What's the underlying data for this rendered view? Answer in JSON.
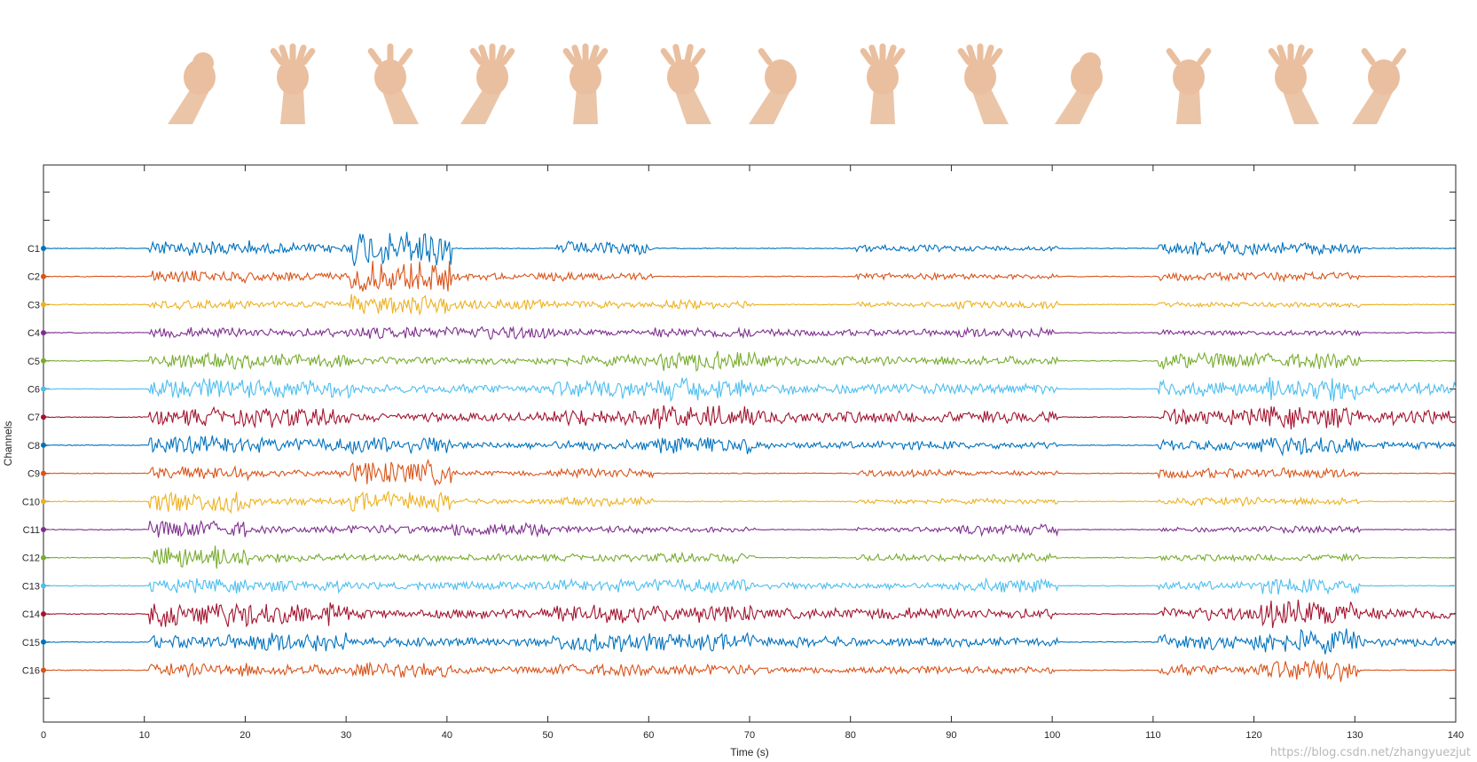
{
  "chart_data": {
    "type": "line",
    "xlabel": "Time (s)",
    "ylabel": "Channels",
    "xlim": [
      0,
      140
    ],
    "x_ticks": [
      "0",
      "10",
      "20",
      "30",
      "40",
      "50",
      "60",
      "70",
      "80",
      "90",
      "100",
      "110",
      "120",
      "130",
      "140"
    ],
    "x_tick_values": [
      0,
      10,
      20,
      30,
      40,
      50,
      60,
      70,
      80,
      90,
      100,
      110,
      120,
      130,
      140
    ],
    "grid": false,
    "legend": "none",
    "gesture_segments_s": [
      {
        "gesture": "fist",
        "start": 10.5,
        "end": 20.5
      },
      {
        "gesture": "open-palm-up",
        "start": 20.5,
        "end": 30.5
      },
      {
        "gesture": "wrist-flexion",
        "start": 30.5,
        "end": 40.5
      },
      {
        "gesture": "fingers-spread-up",
        "start": 50.5,
        "end": 60.5
      },
      {
        "gesture": "hand-spread-out",
        "start": 60.5,
        "end": 70.5
      },
      {
        "gesture": "palm-up-flat",
        "start": 70.5,
        "end": 80.5
      },
      {
        "gesture": "fist-upright",
        "start": 80.5,
        "end": 90.5
      },
      {
        "gesture": "open-palm-front",
        "start": 90.5,
        "end": 100.5
      },
      {
        "gesture": "claw",
        "start": 110.5,
        "end": 120.5
      },
      {
        "gesture": "wrist-extension",
        "start": 120.5,
        "end": 130.5
      },
      {
        "gesture": "pinch",
        "start": 130.5,
        "end": 140
      }
    ],
    "series": [
      {
        "name": "C1",
        "color": "#0072BD",
        "burst_s": [
          [
            10.5,
            20.5,
            0.9
          ],
          [
            20.5,
            30.5,
            0.6
          ],
          [
            30.5,
            40.5,
            2.2
          ],
          [
            50.5,
            60.5,
            0.8
          ],
          [
            80.5,
            90.5,
            0.4
          ],
          [
            90.5,
            100.5,
            0.3
          ],
          [
            110.5,
            120.5,
            0.8
          ],
          [
            120.5,
            130.5,
            0.7
          ]
        ]
      },
      {
        "name": "C2",
        "color": "#D95319",
        "burst_s": [
          [
            10.5,
            20.5,
            0.7
          ],
          [
            20.5,
            30.5,
            0.5
          ],
          [
            30.5,
            40.5,
            1.8
          ],
          [
            40.5,
            50.5,
            0.4
          ],
          [
            50.5,
            60.5,
            0.5
          ],
          [
            80.5,
            90.5,
            0.4
          ],
          [
            90.5,
            100.5,
            0.3
          ],
          [
            110.5,
            120.5,
            0.5
          ],
          [
            120.5,
            130.5,
            0.5
          ]
        ]
      },
      {
        "name": "C3",
        "color": "#EDB120",
        "burst_s": [
          [
            10.5,
            20.5,
            0.5
          ],
          [
            20.5,
            30.5,
            0.4
          ],
          [
            30.5,
            40.5,
            1.2
          ],
          [
            40.5,
            50.5,
            0.6
          ],
          [
            50.5,
            60.5,
            0.4
          ],
          [
            60.5,
            70.5,
            0.5
          ],
          [
            80.5,
            90.5,
            0.3
          ],
          [
            90.5,
            100.5,
            0.5
          ],
          [
            110.5,
            120.5,
            0.3
          ],
          [
            120.5,
            130.5,
            0.3
          ]
        ]
      },
      {
        "name": "C4",
        "color": "#7E2F8E",
        "burst_s": [
          [
            10.5,
            20.5,
            0.6
          ],
          [
            20.5,
            30.5,
            0.5
          ],
          [
            30.5,
            40.5,
            0.7
          ],
          [
            40.5,
            50.5,
            0.8
          ],
          [
            50.5,
            60.5,
            0.4
          ],
          [
            60.5,
            70.5,
            0.6
          ],
          [
            70.5,
            80.5,
            0.4
          ],
          [
            80.5,
            90.5,
            0.4
          ],
          [
            90.5,
            100.5,
            0.6
          ],
          [
            110.5,
            120.5,
            0.3
          ],
          [
            120.5,
            130.5,
            0.3
          ]
        ]
      },
      {
        "name": "C5",
        "color": "#77AC30",
        "burst_s": [
          [
            10.5,
            20.5,
            0.9
          ],
          [
            20.5,
            30.5,
            0.8
          ],
          [
            30.5,
            40.5,
            0.4
          ],
          [
            40.5,
            50.5,
            0.4
          ],
          [
            50.5,
            60.5,
            0.6
          ],
          [
            60.5,
            70.5,
            1.2
          ],
          [
            70.5,
            80.5,
            0.6
          ],
          [
            80.5,
            90.5,
            0.5
          ],
          [
            90.5,
            100.5,
            0.5
          ],
          [
            110.5,
            120.5,
            0.9
          ],
          [
            120.5,
            130.5,
            0.9
          ]
        ]
      },
      {
        "name": "C6",
        "color": "#4DBEEE",
        "burst_s": [
          [
            10.5,
            20.5,
            1.3
          ],
          [
            20.5,
            30.5,
            1.0
          ],
          [
            30.5,
            40.5,
            0.5
          ],
          [
            40.5,
            50.5,
            0.5
          ],
          [
            50.5,
            60.5,
            1.0
          ],
          [
            60.5,
            70.5,
            1.3
          ],
          [
            70.5,
            80.5,
            0.6
          ],
          [
            80.5,
            90.5,
            0.6
          ],
          [
            90.5,
            100.5,
            0.6
          ],
          [
            110.5,
            120.5,
            0.9
          ],
          [
            120.5,
            130.5,
            1.4
          ],
          [
            130.5,
            140,
            0.8
          ]
        ]
      },
      {
        "name": "C7",
        "color": "#A2142F",
        "burst_s": [
          [
            10.5,
            20.5,
            1.0
          ],
          [
            20.5,
            30.5,
            1.1
          ],
          [
            30.5,
            40.5,
            0.5
          ],
          [
            40.5,
            50.5,
            0.5
          ],
          [
            50.5,
            60.5,
            1.0
          ],
          [
            60.5,
            70.5,
            1.3
          ],
          [
            70.5,
            80.5,
            0.7
          ],
          [
            80.5,
            90.5,
            0.7
          ],
          [
            90.5,
            100.5,
            0.7
          ],
          [
            110.5,
            120.5,
            0.9
          ],
          [
            120.5,
            130.5,
            1.3
          ],
          [
            130.5,
            140,
            0.8
          ]
        ]
      },
      {
        "name": "C8",
        "color": "#0072BD",
        "burst_s": [
          [
            10.5,
            20.5,
            1.1
          ],
          [
            20.5,
            30.5,
            0.8
          ],
          [
            30.5,
            40.5,
            1.0
          ],
          [
            40.5,
            50.5,
            0.4
          ],
          [
            50.5,
            60.5,
            0.6
          ],
          [
            60.5,
            70.5,
            1.0
          ],
          [
            70.5,
            80.5,
            0.4
          ],
          [
            80.5,
            90.5,
            0.5
          ],
          [
            90.5,
            100.5,
            0.4
          ],
          [
            110.5,
            120.5,
            0.6
          ],
          [
            120.5,
            130.5,
            1.1
          ],
          [
            130.5,
            140,
            0.4
          ]
        ]
      },
      {
        "name": "C9",
        "color": "#D95319",
        "burst_s": [
          [
            10.5,
            20.5,
            0.8
          ],
          [
            20.5,
            30.5,
            0.4
          ],
          [
            30.5,
            40.5,
            1.4
          ],
          [
            40.5,
            50.5,
            0.3
          ],
          [
            50.5,
            60.5,
            0.6
          ],
          [
            80.5,
            90.5,
            0.4
          ],
          [
            90.5,
            100.5,
            0.3
          ],
          [
            110.5,
            120.5,
            0.6
          ],
          [
            120.5,
            130.5,
            0.6
          ]
        ]
      },
      {
        "name": "C10",
        "color": "#EDB120",
        "burst_s": [
          [
            10.5,
            20.5,
            1.3
          ],
          [
            20.5,
            30.5,
            0.4
          ],
          [
            30.5,
            40.5,
            1.1
          ],
          [
            40.5,
            50.5,
            0.3
          ],
          [
            50.5,
            60.5,
            0.5
          ],
          [
            80.5,
            90.5,
            0.3
          ],
          [
            90.5,
            100.5,
            0.3
          ],
          [
            110.5,
            120.5,
            0.5
          ],
          [
            120.5,
            130.5,
            0.4
          ]
        ]
      },
      {
        "name": "C11",
        "color": "#7E2F8E",
        "burst_s": [
          [
            10.5,
            20.5,
            1.0
          ],
          [
            20.5,
            30.5,
            0.4
          ],
          [
            30.5,
            40.5,
            0.5
          ],
          [
            40.5,
            50.5,
            0.9
          ],
          [
            50.5,
            60.5,
            0.4
          ],
          [
            60.5,
            70.5,
            0.3
          ],
          [
            80.5,
            90.5,
            0.3
          ],
          [
            90.5,
            100.5,
            0.6
          ],
          [
            110.5,
            120.5,
            0.3
          ],
          [
            120.5,
            130.5,
            0.4
          ]
        ]
      },
      {
        "name": "C12",
        "color": "#77AC30",
        "burst_s": [
          [
            10.5,
            20.5,
            1.4
          ],
          [
            20.5,
            30.5,
            0.5
          ],
          [
            30.5,
            40.5,
            0.4
          ],
          [
            40.5,
            50.5,
            0.4
          ],
          [
            50.5,
            60.5,
            0.4
          ],
          [
            60.5,
            70.5,
            0.6
          ],
          [
            80.5,
            90.5,
            0.4
          ],
          [
            90.5,
            100.5,
            0.5
          ],
          [
            110.5,
            120.5,
            0.4
          ],
          [
            120.5,
            130.5,
            0.4
          ]
        ]
      },
      {
        "name": "C13",
        "color": "#4DBEEE",
        "burst_s": [
          [
            10.5,
            20.5,
            0.8
          ],
          [
            20.5,
            30.5,
            0.7
          ],
          [
            30.5,
            40.5,
            0.4
          ],
          [
            40.5,
            50.5,
            0.5
          ],
          [
            50.5,
            60.5,
            0.7
          ],
          [
            60.5,
            70.5,
            0.8
          ],
          [
            70.5,
            80.5,
            0.4
          ],
          [
            80.5,
            90.5,
            0.4
          ],
          [
            90.5,
            100.5,
            0.8
          ],
          [
            110.5,
            120.5,
            0.5
          ],
          [
            120.5,
            130.5,
            0.9
          ]
        ]
      },
      {
        "name": "C14",
        "color": "#A2142F",
        "burst_s": [
          [
            10.5,
            20.5,
            1.5
          ],
          [
            20.5,
            30.5,
            1.4
          ],
          [
            30.5,
            40.5,
            0.5
          ],
          [
            40.5,
            50.5,
            0.6
          ],
          [
            50.5,
            60.5,
            1.1
          ],
          [
            60.5,
            70.5,
            1.0
          ],
          [
            70.5,
            80.5,
            0.6
          ],
          [
            80.5,
            90.5,
            0.7
          ],
          [
            90.5,
            100.5,
            0.6
          ],
          [
            110.5,
            120.5,
            0.8
          ],
          [
            120.5,
            130.5,
            1.6
          ],
          [
            130.5,
            140,
            0.7
          ]
        ]
      },
      {
        "name": "C15",
        "color": "#0072BD",
        "burst_s": [
          [
            10.5,
            20.5,
            0.8
          ],
          [
            20.5,
            30.5,
            1.2
          ],
          [
            30.5,
            40.5,
            0.5
          ],
          [
            40.5,
            50.5,
            0.5
          ],
          [
            50.5,
            60.5,
            1.1
          ],
          [
            60.5,
            70.5,
            1.0
          ],
          [
            70.5,
            80.5,
            0.6
          ],
          [
            80.5,
            90.5,
            0.5
          ],
          [
            90.5,
            100.5,
            0.5
          ],
          [
            110.5,
            120.5,
            0.9
          ],
          [
            120.5,
            130.5,
            1.4
          ],
          [
            130.5,
            140,
            0.5
          ]
        ]
      },
      {
        "name": "C16",
        "color": "#D95319",
        "burst_s": [
          [
            10.5,
            20.5,
            0.8
          ],
          [
            20.5,
            30.5,
            0.6
          ],
          [
            30.5,
            40.5,
            0.8
          ],
          [
            40.5,
            50.5,
            0.4
          ],
          [
            50.5,
            60.5,
            0.7
          ],
          [
            60.5,
            70.5,
            0.6
          ],
          [
            70.5,
            80.5,
            0.4
          ],
          [
            80.5,
            90.5,
            0.5
          ],
          [
            90.5,
            100.5,
            0.4
          ],
          [
            110.5,
            120.5,
            0.6
          ],
          [
            120.5,
            130.5,
            1.2
          ]
        ]
      }
    ]
  },
  "gesture_images": [
    {
      "name": "fist"
    },
    {
      "name": "open-palm-up"
    },
    {
      "name": "wrist-flexion"
    },
    {
      "name": "fingers-spread-up"
    },
    {
      "name": "hand-spread-out"
    },
    {
      "name": "palm-up-flat"
    },
    {
      "name": "fist-upright"
    },
    {
      "name": "open-palm-front"
    },
    {
      "name": "claw"
    },
    {
      "name": "wrist-extension-fist"
    },
    {
      "name": "pinch"
    },
    {
      "name": "fingers-point"
    },
    {
      "name": "pinch-upright"
    }
  ],
  "skin_color": "#e9bf9f",
  "watermark": "https://blog.csdn.net/zhangyuezjut"
}
